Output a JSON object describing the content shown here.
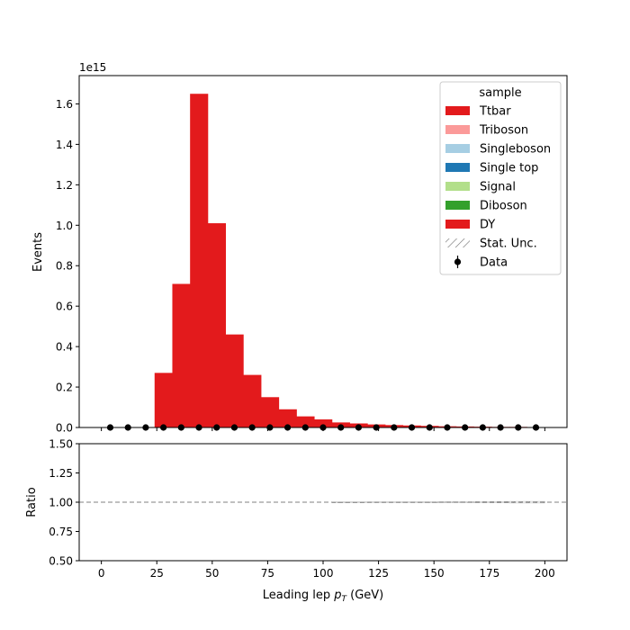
{
  "chart_data": [
    {
      "type": "bar",
      "stacked": true,
      "offset_text": "1e15",
      "ylabel": "Events",
      "ylim": [
        0,
        1.74
      ],
      "yticks": [
        "0.0",
        "0.2",
        "0.4",
        "0.6",
        "0.8",
        "1.0",
        "1.2",
        "1.4",
        "1.6"
      ],
      "xlim": [
        -10,
        210
      ],
      "bin_width": 8,
      "bin_start": 0,
      "bin_end": 200,
      "series": [
        {
          "name": "Ttbar",
          "color": "#e31a1c",
          "values": []
        },
        {
          "name": "Triboson",
          "color": "#fb9a99",
          "values": []
        },
        {
          "name": "Singleboson",
          "color": "#a6cee3",
          "values": []
        },
        {
          "name": "Single top",
          "color": "#1f78b4",
          "values": []
        },
        {
          "name": "Signal",
          "color": "#b2df8a",
          "values": []
        },
        {
          "name": "Diboson",
          "color": "#33a02c",
          "values": []
        },
        {
          "name": "DY",
          "color": "#e31a1c",
          "values": [
            0,
            0,
            0,
            0.27,
            0.71,
            1.65,
            1.01,
            0.46,
            0.26,
            0.15,
            0.09,
            0.055,
            0.04,
            0.025,
            0.02,
            0.015,
            0.012,
            0.01,
            0.008,
            0.006,
            0.005,
            0.004,
            0.003,
            0.003,
            0.002
          ]
        }
      ],
      "data_points": {
        "name": "Data",
        "x": [
          4,
          12,
          20,
          28,
          36,
          44,
          52,
          60,
          68,
          76,
          84,
          92,
          100,
          108,
          116,
          124,
          132,
          140,
          148,
          156,
          164,
          172,
          180,
          188,
          196
        ],
        "y": [
          0,
          0,
          0,
          0,
          0,
          0,
          0,
          0,
          0,
          0,
          0,
          0,
          0,
          0,
          0,
          0,
          0,
          0,
          0,
          0,
          0,
          0,
          0,
          0,
          0
        ]
      },
      "legend": {
        "title": "sample",
        "placement": "top-right",
        "entries": [
          "Ttbar",
          "Triboson",
          "Singleboson",
          "Single top",
          "Signal",
          "Diboson",
          "DY",
          "Stat. Unc.",
          "Data"
        ]
      }
    },
    {
      "type": "line",
      "ylabel": "Ratio",
      "ylim": [
        0.5,
        1.5
      ],
      "yticks": [
        "0.50",
        "0.75",
        "1.00",
        "1.25",
        "1.50"
      ],
      "xlim": [
        -10,
        210
      ],
      "xticks": [
        "0",
        "25",
        "50",
        "75",
        "100",
        "125",
        "150",
        "175",
        "200"
      ],
      "xlabel": "Leading lep p_T (GeV)",
      "reference_line": 1.0,
      "stat_unc_band": {
        "x": [
          104,
          112,
          120,
          128,
          136,
          144,
          152,
          160,
          168,
          176,
          184,
          192,
          200
        ],
        "low": [
          0.998,
          0.998,
          0.997,
          0.997,
          0.997,
          0.997,
          0.996,
          0.996,
          0.995,
          0.994,
          0.993,
          0.993,
          0.993
        ],
        "high": [
          1.002,
          1.002,
          1.003,
          1.003,
          1.003,
          1.003,
          1.004,
          1.004,
          1.005,
          1.006,
          1.007,
          1.007,
          1.007
        ]
      }
    }
  ]
}
